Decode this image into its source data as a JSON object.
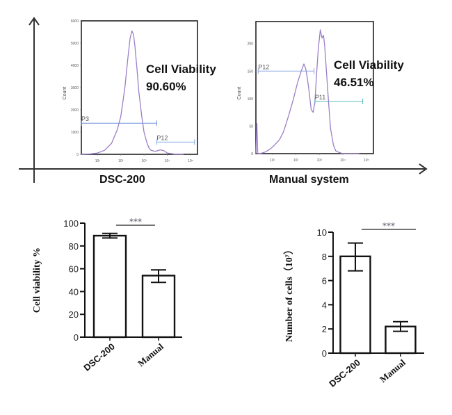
{
  "chart_data": [
    {
      "type": "area",
      "title": "",
      "group_label": "DSC-200",
      "xlabel": "",
      "ylabel": "Count",
      "xscale": "log",
      "xlim": [
        2,
        200000
      ],
      "ylim": [
        0,
        6000
      ],
      "yticks": [
        "0",
        "1000",
        "2000",
        "3000",
        "4000",
        "5000",
        "6000"
      ],
      "xticks": [
        "10¹",
        "10²",
        "10³",
        "10⁴",
        "10⁵"
      ],
      "annotation": [
        "Cell Viability",
        "90.60%"
      ],
      "series": [
        {
          "name": "histogram",
          "color": "#9b7fc7",
          "x": [
            2,
            5,
            10,
            20,
            40,
            70,
            100,
            150,
            200,
            250,
            300,
            350,
            400,
            500,
            600,
            800,
            1000,
            1300,
            1600,
            2000,
            3000,
            5000,
            7000,
            10000,
            20000,
            50000
          ],
          "y": [
            0,
            20,
            60,
            180,
            500,
            1100,
            1700,
            3000,
            4300,
            5200,
            5550,
            5400,
            4900,
            3800,
            2800,
            1700,
            1000,
            550,
            300,
            180,
            130,
            200,
            170,
            60,
            10,
            0
          ]
        }
      ],
      "gates": [
        {
          "name": "P3",
          "x_start": 2,
          "x_end": 3500,
          "y": 1400,
          "color": "#6f8fd8"
        },
        {
          "name": "P12",
          "x_start": 3500,
          "x_end": 150000,
          "y": 550,
          "color": "#7fa8e0"
        }
      ]
    },
    {
      "type": "area",
      "title": "",
      "group_label": "Manual system",
      "xlabel": "",
      "ylabel": "Count",
      "xscale": "log",
      "xlim": [
        2,
        200000
      ],
      "ylim": [
        0,
        240
      ],
      "yticks": [
        "0",
        "50",
        "100",
        "150",
        "200"
      ],
      "xticks": [
        "10¹",
        "10²",
        "10³",
        "10⁴",
        "10⁵"
      ],
      "annotation": [
        "Cell Viability",
        "46.51%"
      ],
      "series": [
        {
          "name": "histogram",
          "color": "#9b7fc7",
          "x": [
            2,
            2.2,
            2.4,
            3,
            5,
            8,
            12,
            20,
            30,
            50,
            80,
            120,
            170,
            220,
            260,
            300,
            350,
            450,
            550,
            650,
            750,
            900,
            1100,
            1300,
            1500,
            1700,
            2000,
            2500,
            3000,
            4000,
            5000,
            7000,
            10000,
            20000,
            50000
          ],
          "y": [
            0,
            55,
            0,
            0,
            3,
            8,
            15,
            25,
            40,
            70,
            100,
            130,
            150,
            163,
            155,
            140,
            120,
            80,
            75,
            95,
            140,
            190,
            225,
            210,
            215,
            195,
            150,
            90,
            45,
            15,
            5,
            2,
            0,
            0,
            0
          ]
        }
      ],
      "gates": [
        {
          "name": "P12",
          "x_start": 2.5,
          "x_end": 600,
          "y": 150,
          "color": "#8fa8e0"
        },
        {
          "name": "P11",
          "x_start": 650,
          "x_end": 70000,
          "y": 95,
          "color": "#5fb8b8"
        }
      ]
    },
    {
      "type": "bar",
      "title": "",
      "xlabel": "",
      "ylabel": "Cell viability %",
      "categories": [
        "DSC-200",
        "Manual"
      ],
      "values": [
        89,
        54
      ],
      "error": [
        [
          87,
          91
        ],
        [
          48,
          59
        ]
      ],
      "ylim": [
        0,
        100
      ],
      "yticks": [
        "0",
        "20",
        "40",
        "60",
        "80",
        "100"
      ],
      "significance": "***"
    },
    {
      "type": "bar",
      "title": "",
      "xlabel": "",
      "ylabel": "Number of cells（10⁷）",
      "categories": [
        "DSC-200",
        "Manual"
      ],
      "values": [
        8.0,
        2.2
      ],
      "error": [
        [
          6.8,
          9.1
        ],
        [
          1.8,
          2.6
        ]
      ],
      "ylim": [
        0,
        10
      ],
      "yticks": [
        "0",
        "2",
        "4",
        "6",
        "8",
        "10"
      ],
      "significance": "***"
    }
  ]
}
